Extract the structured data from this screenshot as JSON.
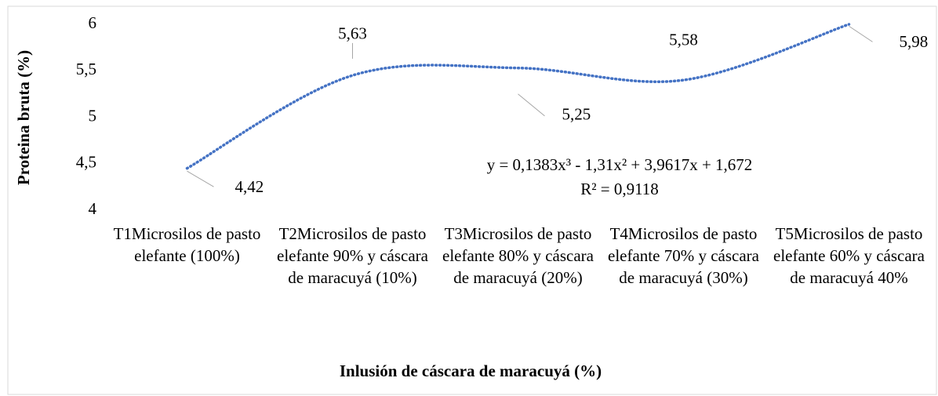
{
  "chart_data": {
    "type": "line",
    "categories": [
      "T1Microsilos de pasto elefante (100%)",
      "T2Microsilos de pasto elefante 90% y cáscara de maracuyá (10%)",
      "T3Microsilos de pasto elefante 80% y cáscara de maracuyá (20%)",
      "T4Microsilos de pasto elefante 70% y cáscara de maracuyá (30%)",
      "T5Microsilos de pasto elefante 60% y cáscara de maracuyá 40%"
    ],
    "values": [
      4.42,
      5.63,
      5.25,
      5.58,
      5.98
    ],
    "value_labels": [
      "4,42",
      "5,63",
      "5,25",
      "5,58",
      "5,98"
    ],
    "trendline_values": [
      4.45,
      5.45,
      5.53,
      5.4,
      6.0
    ],
    "color": "#4472c4",
    "ylim": [
      4,
      6
    ],
    "yticks": [
      4,
      {
        "value": 4.5,
        "label": "4,5"
      },
      5,
      {
        "value": 5.5,
        "label": "5,5"
      },
      6
    ],
    "xlabel": "Inlusión de cáscara de maracuyá (%)",
    "ylabel": "Proteina bruta (%)",
    "annotations": [
      "y = 0,1383x³ - 1,31x² + 3,9617x + 1,672",
      "R² = 0,9118"
    ]
  }
}
